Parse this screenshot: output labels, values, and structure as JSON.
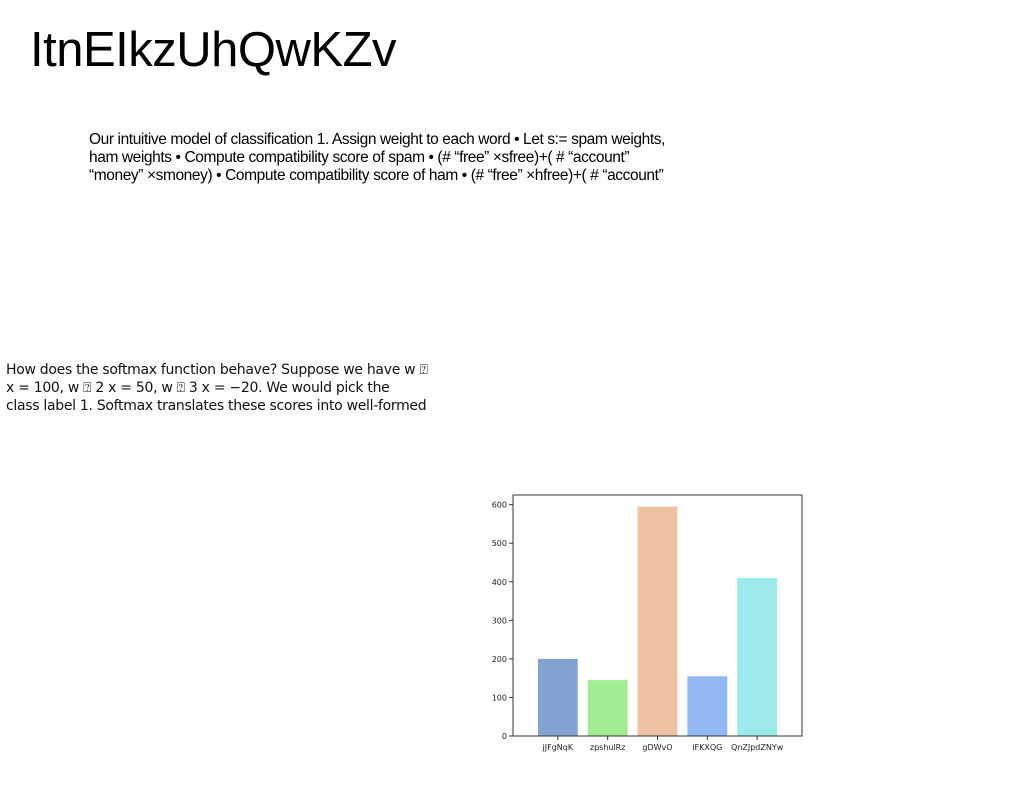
{
  "header": {
    "title": "ItnEIkzUhQwKZv"
  },
  "paragraph_1": {
    "lines": [
      "Our intuitive model of classification 1. Assign weight to each word • Let s:= spam weights,",
      "ham weights • Compute compatibility score of spam • (# “free” ×sfree)+( # “account”",
      "“money” ×smoney) • Compute compatibility score of ham • (# “free” ×hfree)+( # “account”"
    ]
  },
  "paragraph_2": {
    "lines": [
      "How does the softmax function behave? Suppose we have w ⍰",
      "x = 100, w ⍰ 2 x = 50, w ⍰ 3 x = −20. We would pick the",
      "class label 1. Softmax translates these scores into well-formed"
    ]
  },
  "chart_data": {
    "type": "bar",
    "categories": [
      "jJFgNqK",
      "zpshulRz",
      "gDWvO",
      "iFKXQG",
      "QnZJpdZNYw"
    ],
    "values": [
      200,
      145,
      595,
      155,
      410
    ],
    "colors": [
      "#82a3d2",
      "#a4ec94",
      "#eec2a2",
      "#92b9f6",
      "#9ceaea"
    ],
    "ylim": [
      0,
      625
    ],
    "yticks": [
      0,
      100,
      200,
      300,
      400,
      500,
      600
    ],
    "title": "",
    "xlabel": "",
    "ylabel": "",
    "grid": false
  }
}
